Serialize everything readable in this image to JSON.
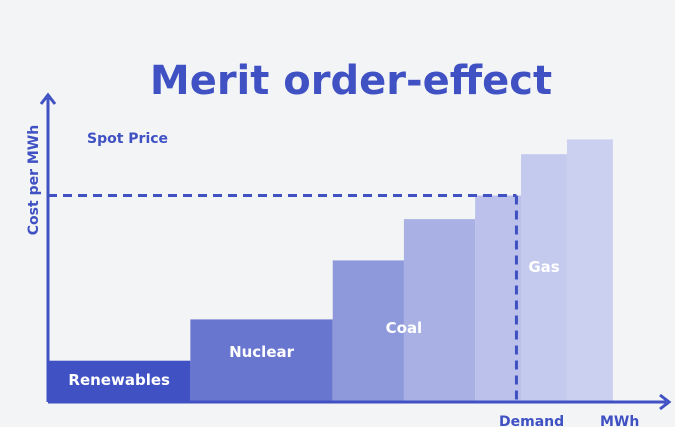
{
  "title": "Merit order-effect",
  "colors": {
    "accent": "#3f51c3",
    "renewables": "#3f51c3",
    "nuclear": "#6976cf",
    "coal_dark": "#8e99db",
    "coal_light": "#a9b1e4",
    "gas_dark": "#bbc1eb",
    "gas_light": "#cbd0f0",
    "background": "#f3f4f6"
  },
  "chart_data": {
    "type": "bar",
    "title": "Merit order-effect",
    "ylabel": "Cost per MWh",
    "xlabel": "MWh",
    "spot_price_label": "Spot Price",
    "demand_label": "Demand",
    "spot_price_level": 7.0,
    "demand_position": 10.2,
    "xlim": [
      0,
      13.5
    ],
    "ylim": [
      0,
      10
    ],
    "blocks": [
      {
        "label": "Renewables",
        "x0": 0.0,
        "x1": 3.1,
        "value": 1.4,
        "color": "#3f51c3"
      },
      {
        "label": "Nuclear",
        "x0": 3.1,
        "x1": 6.2,
        "value": 2.8,
        "color": "#6976cf"
      },
      {
        "label": "Coal",
        "x0": 6.2,
        "x1": 7.75,
        "value": 4.8,
        "color": "#8e99db"
      },
      {
        "label": "",
        "x0": 7.75,
        "x1": 9.3,
        "value": 6.2,
        "color": "#a9b1e4"
      },
      {
        "label": "",
        "x0": 9.3,
        "x1": 10.3,
        "value": 7.0,
        "color": "#bbc1eb"
      },
      {
        "label": "Gas",
        "x0": 10.3,
        "x1": 11.3,
        "value": 8.4,
        "color": "#c4caee"
      },
      {
        "label": "",
        "x0": 11.3,
        "x1": 12.3,
        "value": 8.9,
        "color": "#cbd0f0"
      }
    ],
    "block_labels": [
      {
        "text": "Renewables",
        "block": 0
      },
      {
        "text": "Nuclear",
        "block": 1
      },
      {
        "text": "Coal",
        "block": 2,
        "span_to": 3
      },
      {
        "text": "Gas",
        "block": 4,
        "span_to": 6
      }
    ]
  }
}
